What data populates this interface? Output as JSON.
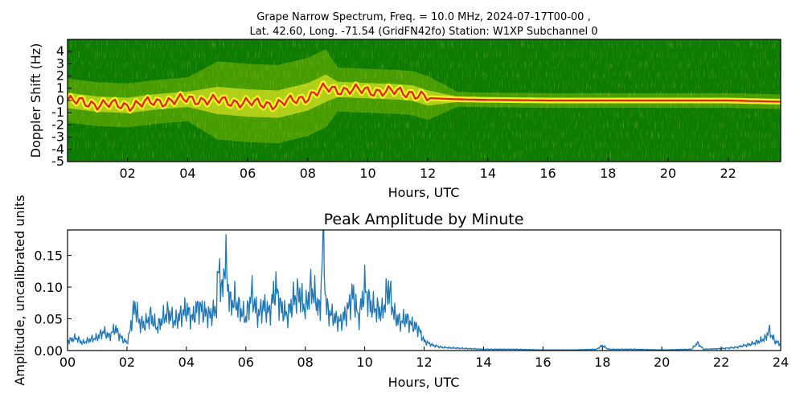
{
  "title": {
    "line1": "Grape Narrow Spectrum, Freq. = 10.0 MHz, 2024-07-17T00-00 ,",
    "line2": "Lat.  42.60, Long. -71.54 (GridFN42fo) Station: W1XP Subchannel 0"
  },
  "colors": {
    "background_green": "#0d7a00",
    "mid_green": "#5aa800",
    "yellow": "#f3f02a",
    "orange": "#f07a10",
    "red": "#e0201a",
    "line_blue": "#1f77b4"
  },
  "chart_data": [
    {
      "type": "heatmap",
      "title": "",
      "xlabel": "Hours, UTC",
      "ylabel": "Doppler Shift (Hz)",
      "xlim": [
        0,
        23.75
      ],
      "ylim": [
        -5,
        5
      ],
      "x_ticks": [
        "02",
        "04",
        "06",
        "08",
        "10",
        "12",
        "14",
        "16",
        "18",
        "20",
        "22"
      ],
      "x_tick_values": [
        2,
        4,
        6,
        8,
        10,
        12,
        14,
        16,
        18,
        20,
        22
      ],
      "y_ticks": [
        "4",
        "3",
        "2",
        "1",
        "0",
        "-1",
        "-2",
        "-3",
        "-4",
        "-5"
      ],
      "y_tick_values": [
        4,
        3,
        2,
        1,
        0,
        -1,
        -2,
        -3,
        -4,
        -5
      ],
      "doppler_trace": {
        "x": [
          0,
          1,
          2,
          3,
          4,
          5,
          6,
          7,
          8,
          8.6,
          9,
          10,
          11,
          11.5,
          12,
          13,
          14,
          16,
          18,
          20,
          22,
          23.75
        ],
        "y": [
          0.0,
          -0.3,
          -0.4,
          -0.1,
          0.1,
          0.0,
          -0.2,
          -0.3,
          0.3,
          1.0,
          0.9,
          0.8,
          0.7,
          0.6,
          0.2,
          0.1,
          0.05,
          0.0,
          0.0,
          0.0,
          0.0,
          -0.1
        ]
      }
    },
    {
      "type": "line",
      "title": "Peak Amplitude by Minute",
      "xlabel": "Hours, UTC",
      "ylabel": "Amplitude, uncalibrated units",
      "xlim": [
        0,
        24
      ],
      "ylim": [
        0,
        0.19
      ],
      "grid": false,
      "x_ticks": [
        "00",
        "02",
        "04",
        "06",
        "08",
        "10",
        "12",
        "14",
        "16",
        "18",
        "20",
        "22",
        "24"
      ],
      "x_tick_values": [
        0,
        2,
        4,
        6,
        8,
        10,
        12,
        14,
        16,
        18,
        20,
        22,
        24
      ],
      "y_ticks": [
        "0.00",
        "0.05",
        "0.10",
        "0.15"
      ],
      "y_tick_values": [
        0,
        0.05,
        0.1,
        0.15
      ],
      "series": [
        {
          "x": [
            0,
            0.3,
            0.5,
            0.8,
            1.0,
            1.2,
            1.4,
            1.6,
            1.8,
            2.0,
            2.1,
            2.2,
            2.3,
            2.4,
            2.6,
            2.8,
            3.0,
            3.2,
            3.4,
            3.6,
            3.8,
            4.0,
            4.2,
            4.4,
            4.6,
            4.8,
            5.0,
            5.1,
            5.2,
            5.3,
            5.4,
            5.5,
            5.6,
            5.8,
            6.0,
            6.2,
            6.4,
            6.6,
            6.8,
            7.0,
            7.2,
            7.4,
            7.6,
            7.8,
            8.0,
            8.2,
            8.4,
            8.5,
            8.6,
            8.7,
            8.8,
            9.0,
            9.2,
            9.4,
            9.6,
            9.8,
            10.0,
            10.2,
            10.4,
            10.6,
            10.8,
            11.0,
            11.2,
            11.4,
            11.6,
            11.8,
            12.0,
            12.3,
            12.6,
            13.0,
            13.5,
            14.0,
            14.5,
            15.0,
            16.0,
            17.0,
            17.8,
            18.0,
            18.2,
            19.0,
            20.0,
            21.0,
            21.2,
            21.4,
            22.0,
            22.5,
            23.0,
            23.3,
            23.5,
            23.6,
            23.8,
            24.0
          ],
          "values": [
            0.015,
            0.02,
            0.012,
            0.018,
            0.02,
            0.03,
            0.022,
            0.035,
            0.02,
            0.012,
            0.03,
            0.06,
            0.07,
            0.045,
            0.04,
            0.055,
            0.035,
            0.05,
            0.06,
            0.045,
            0.055,
            0.065,
            0.05,
            0.07,
            0.06,
            0.055,
            0.065,
            0.14,
            0.085,
            0.15,
            0.1,
            0.07,
            0.08,
            0.065,
            0.05,
            0.09,
            0.055,
            0.07,
            0.06,
            0.1,
            0.065,
            0.055,
            0.08,
            0.09,
            0.065,
            0.1,
            0.075,
            0.06,
            0.19,
            0.07,
            0.06,
            0.05,
            0.045,
            0.06,
            0.09,
            0.05,
            0.1,
            0.07,
            0.065,
            0.06,
            0.1,
            0.055,
            0.045,
            0.05,
            0.04,
            0.035,
            0.015,
            0.008,
            0.005,
            0.004,
            0.003,
            0.002,
            0.002,
            0.002,
            0.001,
            0.001,
            0.002,
            0.008,
            0.002,
            0.002,
            0.001,
            0.002,
            0.012,
            0.002,
            0.003,
            0.005,
            0.01,
            0.015,
            0.02,
            0.032,
            0.015,
            0.01
          ]
        }
      ]
    }
  ]
}
